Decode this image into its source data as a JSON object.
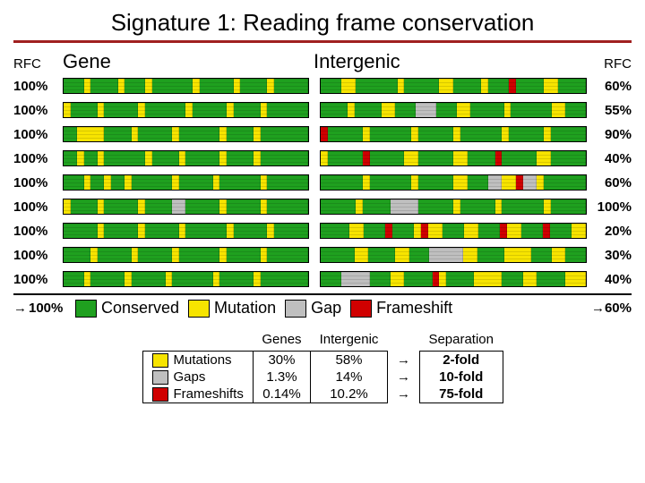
{
  "title": "Signature 1:  Reading frame conservation",
  "columns": {
    "rfc_left": "RFC",
    "gene": "Gene",
    "intergenic": "Intergenic",
    "rfc_right": "RFC"
  },
  "colors": {
    "conserved": "#1fa01f",
    "mutation": "#f7e400",
    "gap": "#bfbfbf",
    "frameshift": "#d00000",
    "border": "#000000",
    "rule": "#a02020"
  },
  "rows": [
    {
      "left": "100%",
      "right": "60%",
      "gene": [
        [
          "C",
          3
        ],
        [
          "M",
          1
        ],
        [
          "C",
          4
        ],
        [
          "M",
          1
        ],
        [
          "C",
          3
        ],
        [
          "M",
          1
        ],
        [
          "C",
          6
        ],
        [
          "M",
          1
        ],
        [
          "C",
          5
        ],
        [
          "M",
          1
        ],
        [
          "C",
          4
        ],
        [
          "M",
          1
        ],
        [
          "C",
          5
        ]
      ],
      "inter": [
        [
          "C",
          3
        ],
        [
          "M",
          2
        ],
        [
          "C",
          6
        ],
        [
          "M",
          1
        ],
        [
          "C",
          5
        ],
        [
          "M",
          2
        ],
        [
          "C",
          4
        ],
        [
          "M",
          1
        ],
        [
          "C",
          3
        ],
        [
          "F",
          1
        ],
        [
          "C",
          4
        ],
        [
          "M",
          2
        ],
        [
          "C",
          4
        ]
      ]
    },
    {
      "left": "100%",
      "right": "55%",
      "gene": [
        [
          "M",
          1
        ],
        [
          "C",
          4
        ],
        [
          "M",
          1
        ],
        [
          "C",
          5
        ],
        [
          "M",
          1
        ],
        [
          "C",
          6
        ],
        [
          "M",
          1
        ],
        [
          "C",
          5
        ],
        [
          "M",
          1
        ],
        [
          "C",
          4
        ],
        [
          "M",
          1
        ],
        [
          "C",
          6
        ]
      ],
      "inter": [
        [
          "C",
          4
        ],
        [
          "M",
          1
        ],
        [
          "C",
          4
        ],
        [
          "M",
          2
        ],
        [
          "C",
          3
        ],
        [
          "G",
          3
        ],
        [
          "C",
          3
        ],
        [
          "M",
          2
        ],
        [
          "C",
          5
        ],
        [
          "M",
          1
        ],
        [
          "C",
          6
        ],
        [
          "M",
          2
        ],
        [
          "C",
          3
        ]
      ]
    },
    {
      "left": "100%",
      "right": "90%",
      "gene": [
        [
          "C",
          2
        ],
        [
          "M",
          4
        ],
        [
          "C",
          4
        ],
        [
          "M",
          1
        ],
        [
          "C",
          5
        ],
        [
          "M",
          1
        ],
        [
          "C",
          6
        ],
        [
          "M",
          1
        ],
        [
          "C",
          4
        ],
        [
          "M",
          1
        ],
        [
          "C",
          7
        ]
      ],
      "inter": [
        [
          "F",
          1
        ],
        [
          "C",
          5
        ],
        [
          "M",
          1
        ],
        [
          "C",
          6
        ],
        [
          "M",
          1
        ],
        [
          "C",
          5
        ],
        [
          "M",
          1
        ],
        [
          "C",
          6
        ],
        [
          "M",
          1
        ],
        [
          "C",
          5
        ],
        [
          "M",
          1
        ],
        [
          "C",
          5
        ]
      ]
    },
    {
      "left": "100%",
      "right": "40%",
      "gene": [
        [
          "C",
          2
        ],
        [
          "M",
          1
        ],
        [
          "C",
          2
        ],
        [
          "M",
          1
        ],
        [
          "C",
          6
        ],
        [
          "M",
          1
        ],
        [
          "C",
          4
        ],
        [
          "M",
          1
        ],
        [
          "C",
          5
        ],
        [
          "M",
          1
        ],
        [
          "C",
          4
        ],
        [
          "M",
          1
        ],
        [
          "C",
          7
        ]
      ],
      "inter": [
        [
          "M",
          1
        ],
        [
          "C",
          5
        ],
        [
          "F",
          1
        ],
        [
          "C",
          5
        ],
        [
          "M",
          2
        ],
        [
          "C",
          5
        ],
        [
          "M",
          2
        ],
        [
          "C",
          4
        ],
        [
          "F",
          1
        ],
        [
          "C",
          5
        ],
        [
          "M",
          2
        ],
        [
          "C",
          5
        ]
      ]
    },
    {
      "left": "100%",
      "right": "60%",
      "gene": [
        [
          "C",
          3
        ],
        [
          "M",
          1
        ],
        [
          "C",
          2
        ],
        [
          "M",
          1
        ],
        [
          "C",
          2
        ],
        [
          "M",
          1
        ],
        [
          "C",
          6
        ],
        [
          "M",
          1
        ],
        [
          "C",
          5
        ],
        [
          "M",
          1
        ],
        [
          "C",
          6
        ],
        [
          "M",
          1
        ],
        [
          "C",
          6
        ]
      ],
      "inter": [
        [
          "C",
          6
        ],
        [
          "M",
          1
        ],
        [
          "C",
          6
        ],
        [
          "M",
          1
        ],
        [
          "C",
          5
        ],
        [
          "M",
          2
        ],
        [
          "C",
          3
        ],
        [
          "G",
          2
        ],
        [
          "M",
          2
        ],
        [
          "F",
          1
        ],
        [
          "G",
          2
        ],
        [
          "M",
          1
        ],
        [
          "C",
          6
        ]
      ]
    },
    {
      "left": "100%",
      "right": "100%",
      "gene": [
        [
          "M",
          1
        ],
        [
          "C",
          4
        ],
        [
          "M",
          1
        ],
        [
          "C",
          5
        ],
        [
          "M",
          1
        ],
        [
          "C",
          4
        ],
        [
          "G",
          2
        ],
        [
          "C",
          5
        ],
        [
          "M",
          1
        ],
        [
          "C",
          5
        ],
        [
          "M",
          1
        ],
        [
          "C",
          6
        ]
      ],
      "inter": [
        [
          "C",
          5
        ],
        [
          "M",
          1
        ],
        [
          "C",
          4
        ],
        [
          "G",
          4
        ],
        [
          "C",
          5
        ],
        [
          "M",
          1
        ],
        [
          "C",
          5
        ],
        [
          "M",
          1
        ],
        [
          "C",
          6
        ],
        [
          "M",
          1
        ],
        [
          "C",
          5
        ]
      ]
    },
    {
      "left": "100%",
      "right": "20%",
      "gene": [
        [
          "C",
          5
        ],
        [
          "M",
          1
        ],
        [
          "C",
          5
        ],
        [
          "M",
          1
        ],
        [
          "C",
          5
        ],
        [
          "M",
          1
        ],
        [
          "C",
          6
        ],
        [
          "M",
          1
        ],
        [
          "C",
          5
        ],
        [
          "M",
          1
        ],
        [
          "C",
          5
        ]
      ],
      "inter": [
        [
          "C",
          4
        ],
        [
          "M",
          2
        ],
        [
          "C",
          3
        ],
        [
          "F",
          1
        ],
        [
          "C",
          3
        ],
        [
          "M",
          1
        ],
        [
          "F",
          1
        ],
        [
          "M",
          2
        ],
        [
          "C",
          3
        ],
        [
          "M",
          2
        ],
        [
          "C",
          3
        ],
        [
          "F",
          1
        ],
        [
          "M",
          2
        ],
        [
          "C",
          3
        ],
        [
          "F",
          1
        ],
        [
          "C",
          3
        ],
        [
          "M",
          2
        ]
      ]
    },
    {
      "left": "100%",
      "right": "30%",
      "gene": [
        [
          "C",
          4
        ],
        [
          "M",
          1
        ],
        [
          "C",
          5
        ],
        [
          "M",
          1
        ],
        [
          "C",
          5
        ],
        [
          "M",
          1
        ],
        [
          "C",
          6
        ],
        [
          "M",
          1
        ],
        [
          "C",
          5
        ],
        [
          "M",
          1
        ],
        [
          "C",
          6
        ]
      ],
      "inter": [
        [
          "C",
          5
        ],
        [
          "M",
          2
        ],
        [
          "C",
          4
        ],
        [
          "M",
          2
        ],
        [
          "C",
          3
        ],
        [
          "G",
          5
        ],
        [
          "M",
          2
        ],
        [
          "C",
          4
        ],
        [
          "M",
          4
        ],
        [
          "C",
          3
        ],
        [
          "M",
          2
        ],
        [
          "C",
          3
        ]
      ]
    },
    {
      "left": "100%",
      "right": "40%",
      "gene": [
        [
          "C",
          3
        ],
        [
          "M",
          1
        ],
        [
          "C",
          5
        ],
        [
          "M",
          1
        ],
        [
          "C",
          5
        ],
        [
          "M",
          1
        ],
        [
          "C",
          6
        ],
        [
          "M",
          1
        ],
        [
          "C",
          5
        ],
        [
          "M",
          1
        ],
        [
          "C",
          7
        ]
      ],
      "inter": [
        [
          "C",
          3
        ],
        [
          "G",
          4
        ],
        [
          "C",
          3
        ],
        [
          "M",
          2
        ],
        [
          "C",
          4
        ],
        [
          "F",
          1
        ],
        [
          "M",
          1
        ],
        [
          "C",
          4
        ],
        [
          "M",
          4
        ],
        [
          "C",
          3
        ],
        [
          "M",
          2
        ],
        [
          "C",
          4
        ],
        [
          "M",
          3
        ]
      ]
    }
  ],
  "footer": {
    "left_arrow": "→",
    "left_pct": "100%",
    "legend": [
      {
        "key": "conserved",
        "label": "Conserved"
      },
      {
        "key": "mutation",
        "label": "Mutation"
      },
      {
        "key": "gap",
        "label": "Gap"
      },
      {
        "key": "frameshift",
        "label": "Frameshift"
      }
    ],
    "right_arrow": "→",
    "right_pct": "60%"
  },
  "summary": {
    "headers": {
      "genes": "Genes",
      "intergenic": "Intergenic",
      "separation": "Separation"
    },
    "rows": [
      {
        "key": "mutation",
        "label": "Mutations",
        "genes": "30%",
        "inter": "58%",
        "sep": "2-fold"
      },
      {
        "key": "gap",
        "label": "Gaps",
        "genes": "1.3%",
        "inter": "14%",
        "sep": "10-fold"
      },
      {
        "key": "frameshift",
        "label": "Frameshifts",
        "genes": "0.14%",
        "inter": "10.2%",
        "sep": "75-fold"
      }
    ],
    "arrow": "→"
  }
}
